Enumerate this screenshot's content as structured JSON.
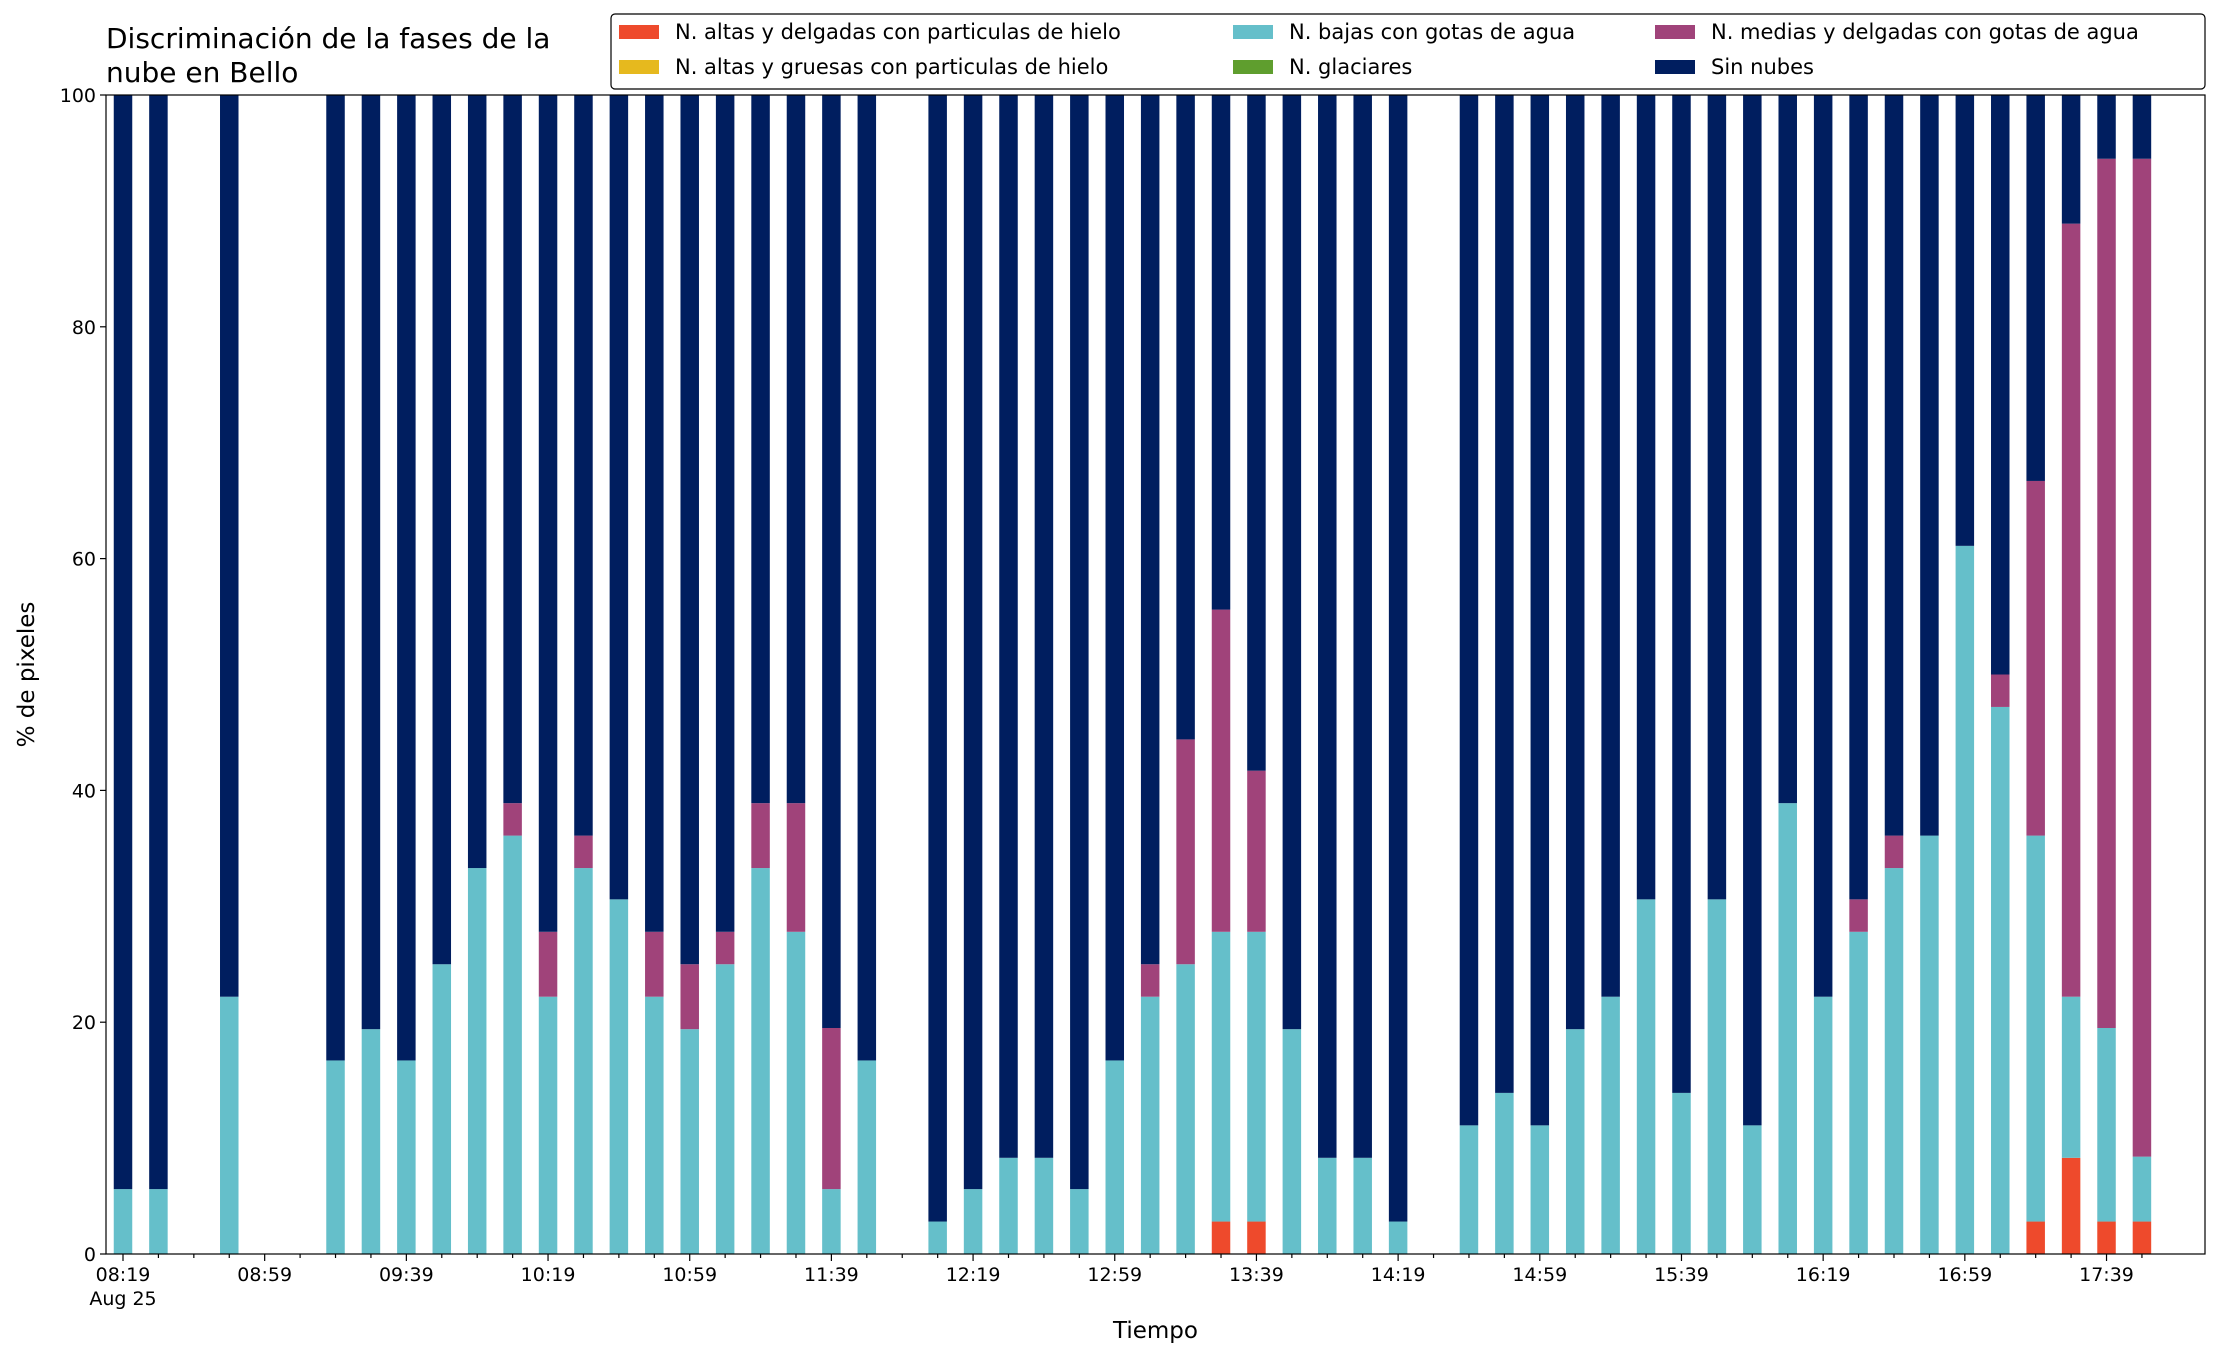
{
  "chart_data": {
    "type": "stacked_bar",
    "title": "Discriminación de la fases de la nube en Bello",
    "xlabel": "Tiempo",
    "ylabel": "% de pixeles",
    "categories": [
      "08:19",
      null,
      null,
      null,
      "08:59",
      null,
      null,
      null,
      "09:39",
      null,
      null,
      null,
      "10:19",
      null,
      null,
      null,
      "10:59",
      null,
      null,
      null,
      "11:39",
      null,
      null,
      null,
      "12:19",
      null,
      null,
      null,
      "12:59",
      null,
      null,
      null,
      "13:39",
      null,
      null,
      null,
      "14:19",
      null,
      null,
      null,
      "14:59",
      null,
      null,
      null,
      "15:39",
      null,
      null,
      null,
      "16:19",
      null,
      null,
      null,
      "16:59",
      null,
      null,
      null,
      "17:39",
      null
    ],
    "xtick_sublabel": "Aug 25",
    "ylim": [
      0,
      100
    ],
    "yticks": [
      0,
      20,
      40,
      60,
      80,
      100
    ],
    "legend": "upper right",
    "series": [
      {
        "name": "N. altas y delgadas con particulas de hielo",
        "color": "#ee4a2c",
        "values": [
          0,
          0,
          null,
          0,
          null,
          null,
          0,
          0,
          0,
          0,
          0,
          0,
          0,
          0,
          0,
          0,
          0,
          0,
          0,
          0,
          0,
          0,
          null,
          0,
          0,
          0,
          0,
          0,
          0,
          0,
          0,
          2.8,
          2.8,
          0,
          0,
          0,
          0,
          null,
          0,
          0,
          0,
          0,
          0,
          0,
          0,
          0,
          0,
          0,
          0,
          0,
          0,
          0,
          0,
          0,
          2.8,
          8.3,
          2.8,
          2.8
        ]
      },
      {
        "name": "N. altas y gruesas con particulas de hielo",
        "color": "#e6b91e",
        "values": [
          0,
          0,
          null,
          0,
          null,
          null,
          0,
          0,
          0,
          0,
          0,
          0,
          0,
          0,
          0,
          0,
          0,
          0,
          0,
          0,
          0,
          0,
          null,
          0,
          0,
          0,
          0,
          0,
          0,
          0,
          0,
          0,
          0,
          0,
          0,
          0,
          0,
          null,
          0,
          0,
          0,
          0,
          0,
          0,
          0,
          0,
          0,
          0,
          0,
          0,
          0,
          0,
          0,
          0,
          0,
          0,
          0,
          0
        ]
      },
      {
        "name": "N. bajas con gotas de agua",
        "color": "#65bfca",
        "values": [
          5.6,
          5.6,
          null,
          22.2,
          null,
          null,
          16.7,
          19.4,
          16.7,
          25,
          33.3,
          36.1,
          22.2,
          33.3,
          30.6,
          22.2,
          19.4,
          25,
          33.3,
          27.8,
          5.6,
          16.7,
          null,
          2.8,
          5.6,
          8.3,
          8.3,
          5.6,
          16.7,
          22.2,
          25,
          25,
          25,
          19.4,
          8.3,
          8.3,
          2.8,
          null,
          11.1,
          13.9,
          11.1,
          19.4,
          22.2,
          30.6,
          13.9,
          30.6,
          11.1,
          38.9,
          22.2,
          27.8,
          33.3,
          36.1,
          61.1,
          47.2,
          33.3,
          13.9,
          16.7,
          5.6
        ]
      },
      {
        "name": "N. glaciares",
        "color": "#5f9e2e",
        "values": [
          0,
          0,
          null,
          0,
          null,
          null,
          0,
          0,
          0,
          0,
          0,
          0,
          0,
          0,
          0,
          0,
          0,
          0,
          0,
          0,
          0,
          0,
          null,
          0,
          0,
          0,
          0,
          0,
          0,
          0,
          0,
          0,
          0,
          0,
          0,
          0,
          0,
          null,
          0,
          0,
          0,
          0,
          0,
          0,
          0,
          0,
          0,
          0,
          0,
          0,
          0,
          0,
          0,
          0,
          0,
          0,
          0,
          0
        ]
      },
      {
        "name": "N. medias y delgadas con gotas de agua",
        "color": "#a0437a",
        "values": [
          0,
          0,
          null,
          0,
          null,
          null,
          0,
          0,
          0,
          0,
          0,
          2.8,
          5.6,
          2.8,
          0,
          5.6,
          5.6,
          2.8,
          5.6,
          11.1,
          13.9,
          0,
          null,
          0,
          0,
          0,
          0,
          0,
          0,
          2.8,
          19.4,
          27.8,
          13.9,
          0,
          0,
          0,
          0,
          null,
          0,
          0,
          0,
          0,
          0,
          0,
          0,
          0,
          0,
          0,
          0,
          2.8,
          2.8,
          0,
          0,
          2.8,
          30.6,
          66.7,
          75,
          86.1
        ]
      },
      {
        "name": "Sin nubes",
        "color": "#001e5f",
        "values": [
          94.4,
          94.4,
          null,
          77.8,
          null,
          null,
          83.3,
          80.6,
          83.3,
          75,
          66.7,
          61.1,
          72.2,
          63.9,
          69.4,
          72.2,
          75,
          72.2,
          61.1,
          61.1,
          80.5,
          83.3,
          null,
          97.2,
          94.4,
          91.7,
          91.7,
          94.4,
          83.3,
          75,
          55.6,
          44.4,
          58.3,
          80.6,
          91.7,
          91.7,
          97.2,
          null,
          88.9,
          86.1,
          88.9,
          80.6,
          77.8,
          69.4,
          86.1,
          69.4,
          88.9,
          61.1,
          77.8,
          69.4,
          63.9,
          63.9,
          38.9,
          50,
          33.3,
          11.1,
          5.5,
          5.5
        ]
      }
    ]
  }
}
